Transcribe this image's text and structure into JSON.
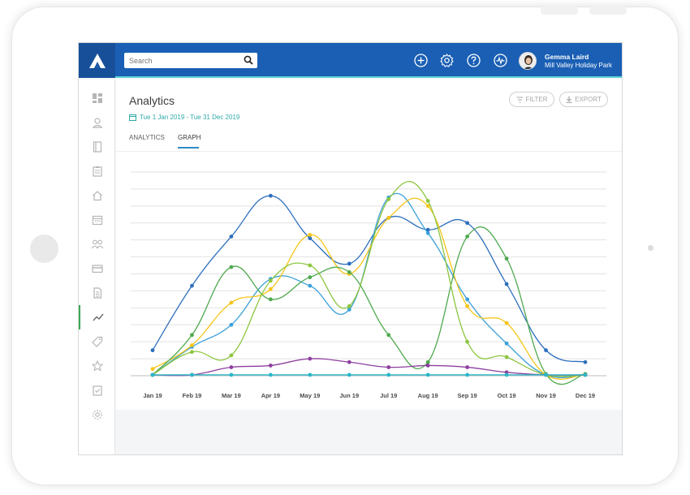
{
  "topbar": {
    "search_placeholder": "Search",
    "user_name": "Gemma Laird",
    "user_org": "Mill Valley Holiday Park",
    "icons": [
      "plus-circle-icon",
      "gear-icon",
      "help-icon",
      "activity-icon"
    ]
  },
  "sidebar": {
    "items": [
      {
        "icon": "dashboard-icon"
      },
      {
        "icon": "contact-icon"
      },
      {
        "icon": "book-icon"
      },
      {
        "icon": "clipboard-icon"
      },
      {
        "icon": "home-icon"
      },
      {
        "icon": "calendar-icon"
      },
      {
        "icon": "people-icon"
      },
      {
        "icon": "card-icon"
      },
      {
        "icon": "document-icon"
      },
      {
        "icon": "analytics-icon",
        "active": true
      },
      {
        "icon": "tag-icon"
      },
      {
        "icon": "star-icon"
      },
      {
        "icon": "checklist-icon"
      },
      {
        "icon": "settings-icon"
      }
    ]
  },
  "main": {
    "title": "Analytics",
    "date_range": "Tue 1 Jan 2019 - Tue 31 Dec 2019",
    "filter_label": "FILTER",
    "export_label": "EXPORT",
    "tabs": [
      {
        "label": "ANALYTICS",
        "active": false
      },
      {
        "label": "GRAPH",
        "active": true
      }
    ]
  },
  "chart_data": {
    "type": "line",
    "x": [
      "Jan 19",
      "Feb 19",
      "Mar 19",
      "Apr 19",
      "May 19",
      "Jun 19",
      "Jul 19",
      "Aug 19",
      "Sep 19",
      "Oct 19",
      "Nov 19",
      "Dec 19"
    ],
    "ylim": [
      0,
      12
    ],
    "grid": true,
    "series": [
      {
        "color": "#2d6fbe",
        "values": [
          1.5,
          5.3,
          8.2,
          10.6,
          8.1,
          6.6,
          9.3,
          8.6,
          9.0,
          5.4,
          1.5,
          0.8
        ]
      },
      {
        "color": "#3aa0d8",
        "values": [
          0.05,
          1.7,
          3.0,
          5.7,
          5.3,
          3.9,
          10.5,
          8.4,
          4.5,
          1.9,
          0.05,
          0.05
        ]
      },
      {
        "color": "#f5c518",
        "values": [
          0.4,
          1.8,
          4.3,
          5.1,
          8.3,
          6.0,
          9.3,
          10.0,
          4.1,
          3.1,
          0.05,
          0.1
        ]
      },
      {
        "color": "#4fa94f",
        "values": [
          0.05,
          2.4,
          6.4,
          4.5,
          5.8,
          6.1,
          2.4,
          0.8,
          8.2,
          6.9,
          0.1,
          0.1
        ]
      },
      {
        "color": "#8dc63f",
        "values": [
          0.05,
          1.4,
          1.2,
          5.6,
          6.5,
          4.1,
          10.4,
          10.3,
          2.0,
          1.1,
          0.05,
          0.05
        ]
      },
      {
        "color": "#8e3fa0",
        "values": [
          0.05,
          0.05,
          0.5,
          0.6,
          1.0,
          0.8,
          0.5,
          0.6,
          0.5,
          0.2,
          0.05,
          0.05
        ]
      },
      {
        "color": "#2ab7c9",
        "values": [
          0.05,
          0.05,
          0.05,
          0.05,
          0.05,
          0.05,
          0.05,
          0.05,
          0.05,
          0.05,
          0.05,
          0.05
        ]
      }
    ]
  }
}
